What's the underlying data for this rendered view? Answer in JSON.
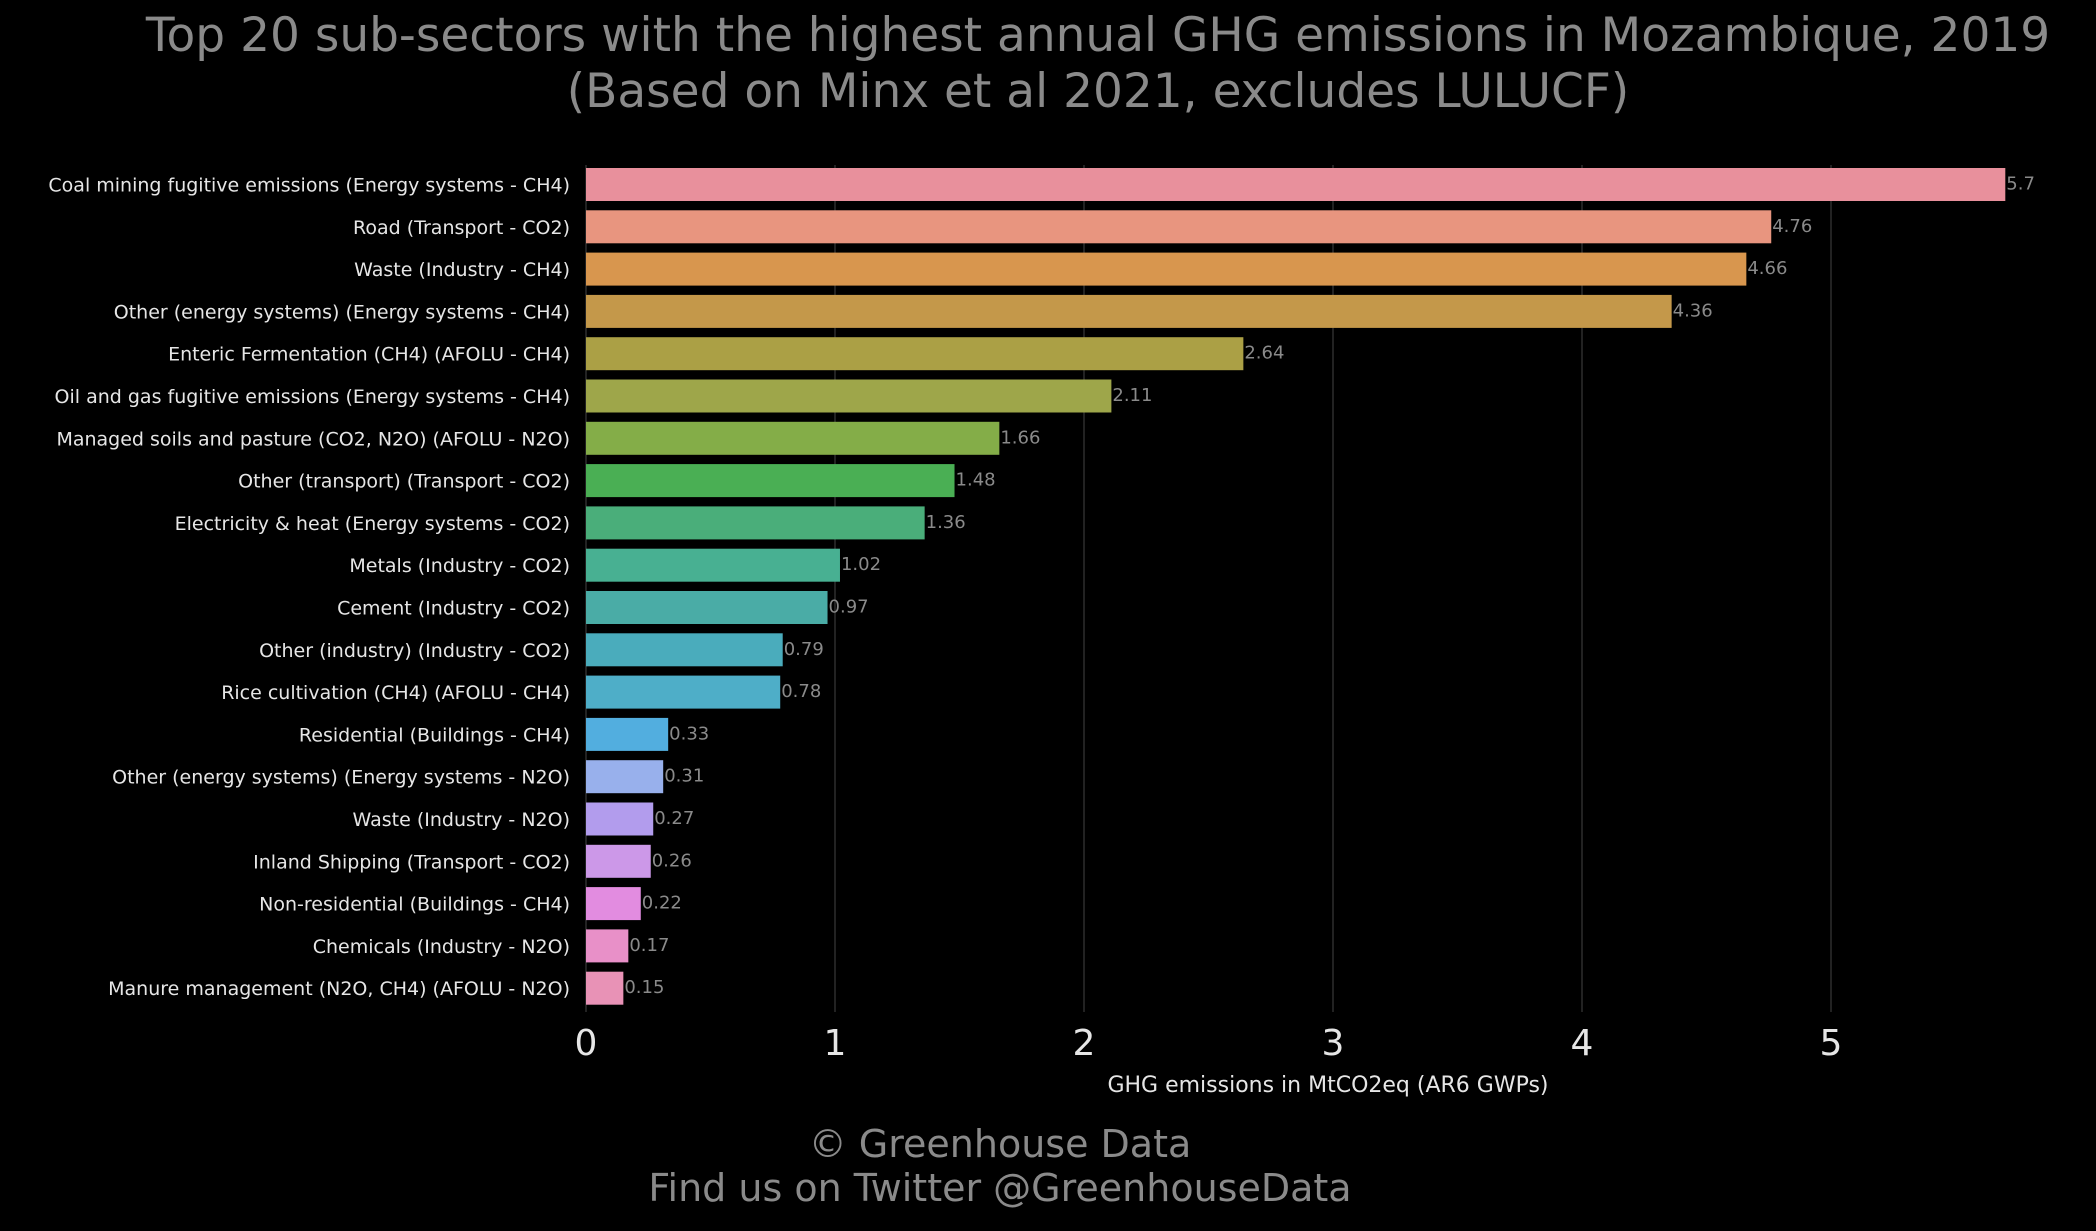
{
  "chart_data": {
    "type": "bar",
    "orientation": "horizontal",
    "title": "Top 20 sub-sectors with the highest annual GHG emissions in Mozambique, 2019",
    "subtitle": "(Based on Minx et al 2021, excludes LULUCF)",
    "xlabel": "GHG emissions in MtCO2eq (AR6 GWPs)",
    "ylabel": "",
    "xlim": [
      0,
      5.85
    ],
    "xticks": [
      0,
      1,
      2,
      3,
      4,
      5
    ],
    "grid": "vertical",
    "categories": [
      "Coal mining fugitive emissions (Energy systems - CH4)",
      "Road (Transport - CO2)",
      "Waste (Industry - CH4)",
      "Other (energy systems) (Energy systems - CH4)",
      "Enteric Fermentation (CH4) (AFOLU - CH4)",
      "Oil and gas fugitive emissions (Energy systems - CH4)",
      "Managed soils and pasture (CO2, N2O) (AFOLU - N2O)",
      "Other (transport) (Transport - CO2)",
      "Electricity & heat (Energy systems - CO2)",
      "Metals (Industry - CO2)",
      "Cement (Industry - CO2)",
      "Other (industry) (Industry - CO2)",
      "Rice cultivation (CH4) (AFOLU - CH4)",
      "Residential (Buildings - CH4)",
      "Other (energy systems) (Energy systems - N2O)",
      "Waste (Industry - N2O)",
      "Inland Shipping (Transport - CO2)",
      "Non-residential (Buildings - CH4)",
      "Chemicals (Industry - N2O)",
      "Manure management (N2O, CH4) (AFOLU - N2O)"
    ],
    "values": [
      5.7,
      4.76,
      4.66,
      4.36,
      2.64,
      2.11,
      1.66,
      1.48,
      1.36,
      1.02,
      0.97,
      0.79,
      0.78,
      0.33,
      0.31,
      0.27,
      0.26,
      0.22,
      0.17,
      0.15
    ],
    "value_labels": [
      "5.7",
      "4.76",
      "4.66",
      "4.36",
      "2.64",
      "2.11",
      "1.66",
      "1.48",
      "1.36",
      "1.02",
      "0.97",
      "0.79",
      "0.78",
      "0.33",
      "0.31",
      "0.27",
      "0.26",
      "0.22",
      "0.17",
      "0.15"
    ],
    "colors": [
      "#e8909c",
      "#e8957f",
      "#d8964e",
      "#c4984a",
      "#aba045",
      "#9ea64a",
      "#84ad48",
      "#4aaf54",
      "#4aae7a",
      "#48b092",
      "#4aaca6",
      "#4aacbc",
      "#4eaec8",
      "#52aedf",
      "#98b0ec",
      "#b29ced",
      "#cc98e8",
      "#e28ce0",
      "#e890c8",
      "#e892b6"
    ]
  },
  "footer": {
    "line1": "© Greenhouse Data",
    "line2": "Find us on Twitter @GreenhouseData"
  }
}
